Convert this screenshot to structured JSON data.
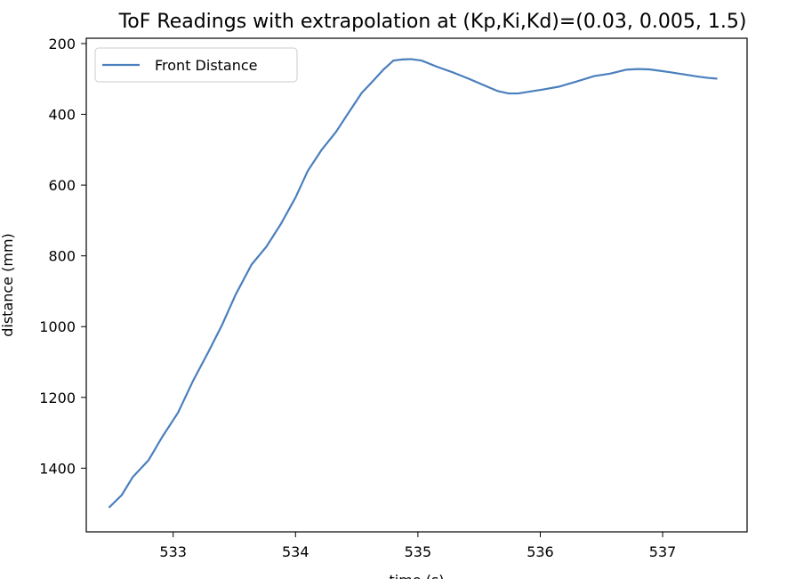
{
  "chart_data": {
    "type": "line",
    "title": "ToF Readings with extrapolation at (Kp,Ki,Kd)=(0.03, 0.005, 1.5)",
    "xlabel": "time (s)",
    "ylabel": "distance (mm)",
    "xlim": [
      532.29,
      537.69
    ],
    "ylim": [
      1580,
      185
    ],
    "y_inverted": true,
    "x_ticks": [
      533,
      534,
      535,
      536,
      537
    ],
    "x_tick_labels": [
      "533",
      "534",
      "535",
      "536",
      "537"
    ],
    "y_ticks": [
      200,
      400,
      600,
      800,
      1000,
      1200,
      1400
    ],
    "y_tick_labels": [
      "200",
      "400",
      "600",
      "800",
      "1000",
      "1200",
      "1400"
    ],
    "grid": false,
    "legend": {
      "position": "top-left",
      "entries": [
        "Front Distance"
      ]
    },
    "series": [
      {
        "name": "Front Distance",
        "color": "#4a7fbd",
        "x": [
          532.48,
          532.58,
          532.67,
          532.8,
          532.91,
          533.04,
          533.16,
          533.29,
          533.4,
          533.51,
          533.64,
          533.76,
          533.88,
          534.0,
          534.1,
          534.21,
          534.33,
          534.44,
          534.54,
          534.63,
          534.72,
          534.8,
          534.87,
          534.94,
          535.03,
          535.16,
          535.29,
          535.42,
          535.54,
          535.65,
          535.74,
          535.82,
          535.91,
          536.02,
          536.15,
          536.29,
          536.44,
          536.57,
          536.7,
          536.8,
          536.89,
          536.98,
          537.06,
          537.17,
          537.28,
          537.37,
          537.44
        ],
        "y": [
          1510,
          1476,
          1425,
          1377,
          1312,
          1243,
          1155,
          1070,
          995,
          910,
          825,
          775,
          710,
          635,
          560,
          502,
          450,
          392,
          340,
          307,
          273,
          248,
          245,
          244,
          248,
          266,
          282,
          300,
          318,
          334,
          341,
          341,
          336,
          330,
          322,
          308,
          292,
          285,
          274,
          272,
          273,
          277,
          281,
          287,
          293,
          297,
          299
        ]
      }
    ]
  }
}
